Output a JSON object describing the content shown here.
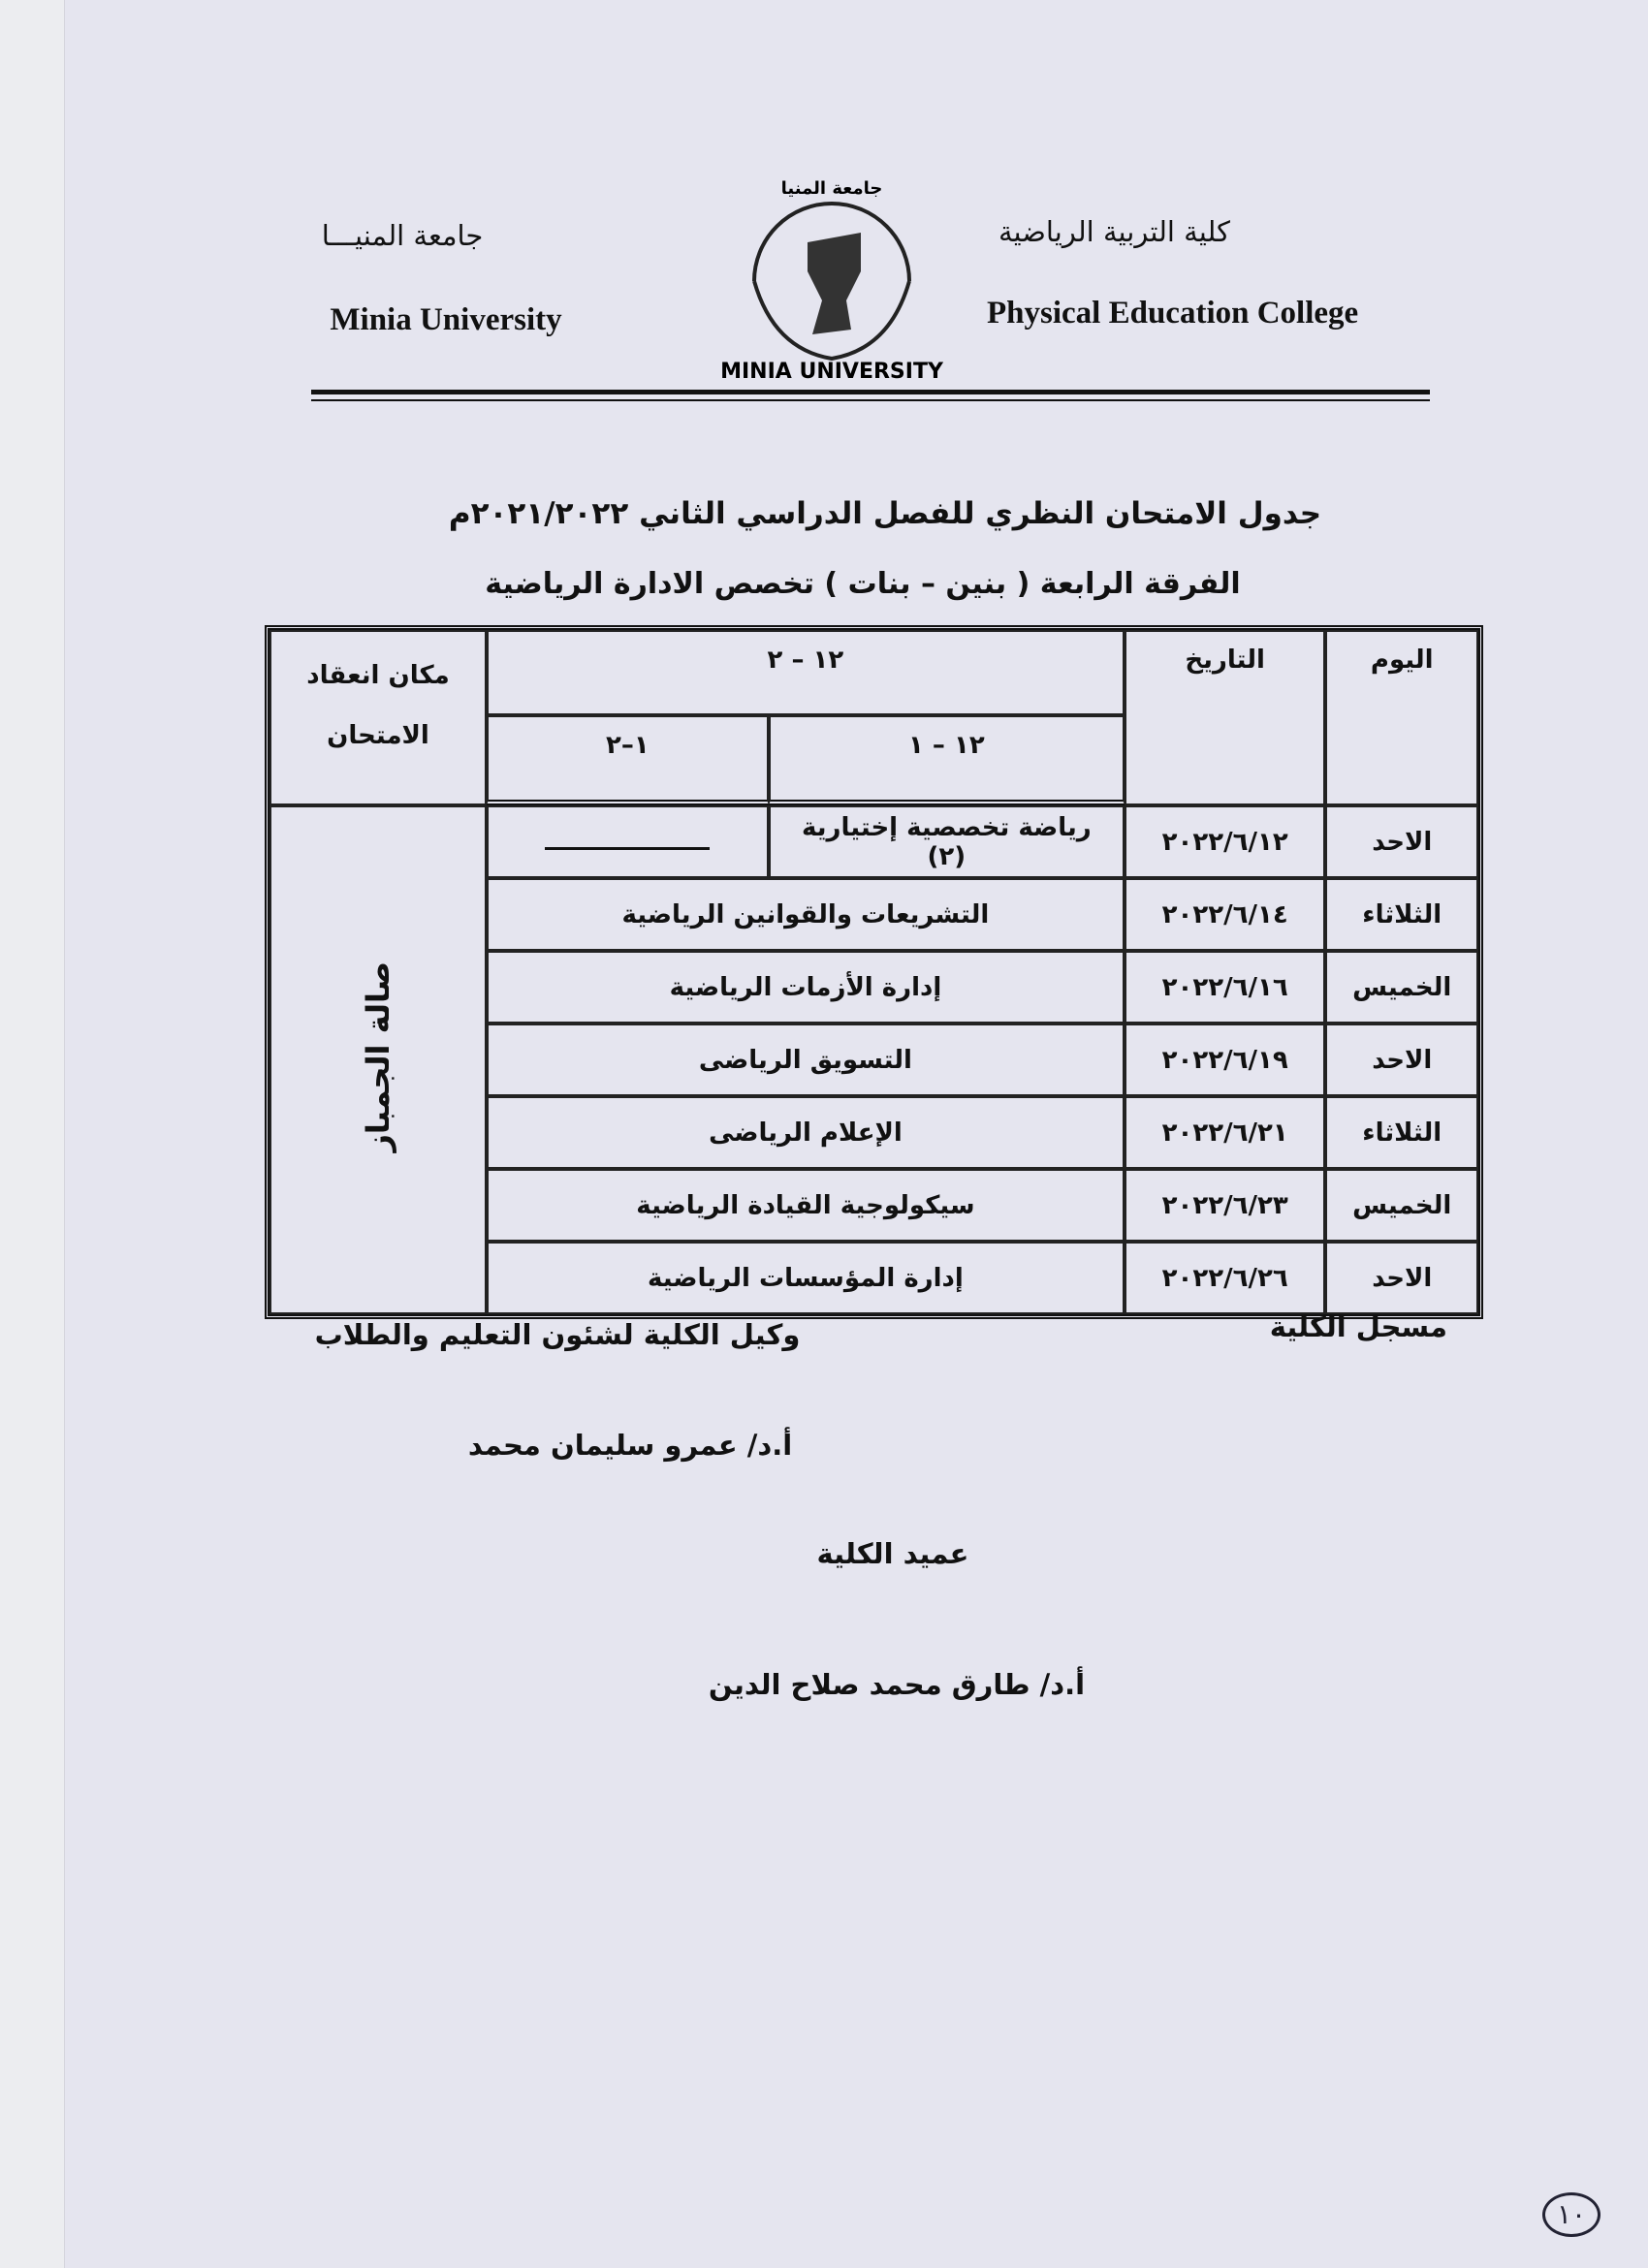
{
  "header": {
    "college_ar": "كلية التربية الرياضية",
    "college_en": "Physical Education College",
    "university_ar": "جامعة المنيـــا",
    "university_en": "Minia University",
    "logo_top": "جامعة المنيا",
    "logo_bottom": "MINIA UNIVERSITY"
  },
  "title": {
    "line1": "جدول الامتحان النظري للفصل الدراسي الثاني ٢٠٢١/٢٠٢٢م",
    "line2": "الفرقة الرابعة ( بنين – بنات )  تخصص الادارة الرياضية"
  },
  "table": {
    "headers": {
      "day": "اليوم",
      "date": "التاريخ",
      "time_full": "١٢ – ٢",
      "time_first": "١٢ – ١",
      "time_second": "١–٢",
      "location": "مكان انعقاد الامتحان"
    },
    "rows": [
      {
        "day": "الاحد",
        "date": "٢٠٢٢/٦/١٢",
        "subject_first": "رياضة تخصصية إختيارية (٢)"
      },
      {
        "day": "الثلاثاء",
        "date": "٢٠٢٢/٦/١٤",
        "subject": "التشريعات والقوانين الرياضية"
      },
      {
        "day": "الخميس",
        "date": "٢٠٢٢/٦/١٦",
        "subject": "إدارة الأزمات الرياضية"
      },
      {
        "day": "الاحد",
        "date": "٢٠٢٢/٦/١٩",
        "subject": "التسويق الرياضى"
      },
      {
        "day": "الثلاثاء",
        "date": "٢٠٢٢/٦/٢١",
        "subject": "الإعلام الرياضى"
      },
      {
        "day": "الخميس",
        "date": "٢٠٢٢/٦/٢٣",
        "subject": "سيكولوجية القيادة الرياضية"
      },
      {
        "day": "الاحد",
        "date": "٢٠٢٢/٦/٢٦",
        "subject": "إدارة المؤسسات الرياضية"
      }
    ],
    "location": "صالة الجمباز"
  },
  "footer": {
    "registrar": "مسجل الكلية",
    "vice_dean_title": "وكيل الكلية لشئون التعليم والطلاب",
    "vice_dean_name": "أ.د/ عمرو سليمان محمد",
    "dean_title": "عميد الكلية",
    "dean_name": "أ.د/ طارق محمد صلاح الدين"
  },
  "page_number": "١٠"
}
